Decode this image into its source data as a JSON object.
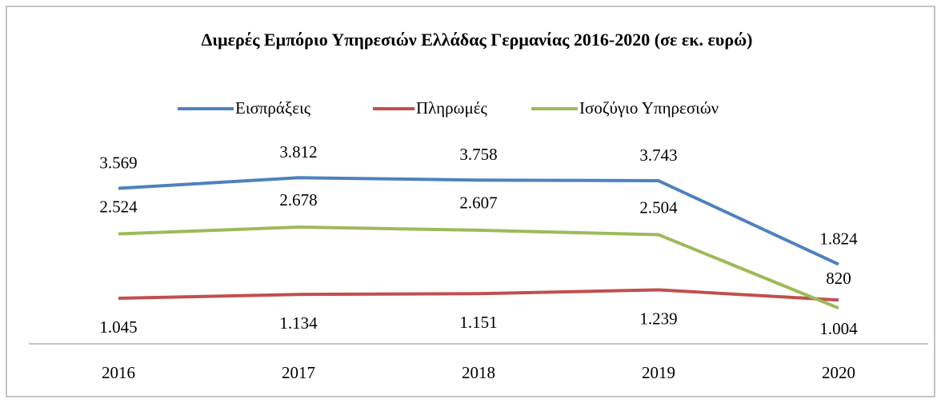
{
  "chart_data": {
    "type": "line",
    "title": "Διμερές Εμπόριο Υπηρεσιών Ελλάδας Γερμανίας 2016-2020 (σε εκ. ευρώ)",
    "categories": [
      "2016",
      "2017",
      "2018",
      "2019",
      "2020"
    ],
    "ylim": [
      0,
      4000
    ],
    "series": [
      {
        "name": "Εισπράξεις",
        "color": "#4f81bd",
        "values": [
          3569,
          3812,
          3758,
          3743,
          1824
        ],
        "value_labels": [
          "3.569",
          "3.812",
          "3.758",
          "3.743",
          "1.824"
        ]
      },
      {
        "name": "Πληρωμές",
        "color": "#c0504d",
        "values": [
          1045,
          1134,
          1151,
          1239,
          1004
        ],
        "value_labels": [
          "1.045",
          "1.134",
          "1.151",
          "1.239",
          "1.004"
        ]
      },
      {
        "name": "Ισοζύγιο Υπηρεσιών",
        "color": "#9bbb59",
        "values": [
          2524,
          2678,
          2607,
          2504,
          820
        ],
        "value_labels": [
          "2.524",
          "2.678",
          "2.607",
          "2.504",
          "820"
        ]
      }
    ]
  }
}
